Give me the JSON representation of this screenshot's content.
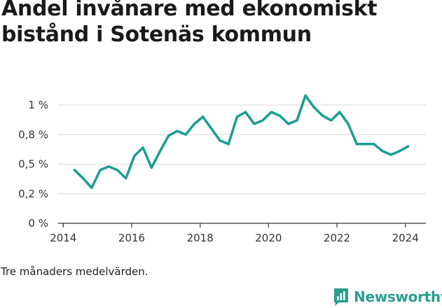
{
  "title": "Andel invånare med ekonomiskt bistånd i Sotenäs kommun",
  "note": "Tre månaders medelvärden.",
  "brand": {
    "name": "Newsworthy",
    "color": "#2a9d8f",
    "icon": "chart-speech-bubble-icon"
  },
  "chart_data": {
    "type": "line",
    "title": "Andel invånare med ekonomiskt bistånd i Sotenäs kommun",
    "xlabel": "",
    "ylabel": "",
    "x_ticks": [
      2014,
      2016,
      2018,
      2020,
      2022,
      2024
    ],
    "x_tick_labels": [
      "2014",
      "2016",
      "2018",
      "2020",
      "2022",
      "2024"
    ],
    "y_ticks": [
      0,
      0.25,
      0.5,
      0.75,
      1.0
    ],
    "y_tick_labels": [
      "0 %",
      "0,2 %",
      "0,5 %",
      "0,8 %",
      "1 %"
    ],
    "xlim": [
      2013.85,
      2024.6
    ],
    "ylim": [
      0,
      1.0
    ],
    "grid": true,
    "line_color": "#1a9e8f",
    "series": [
      {
        "x": [
          2014.33,
          2014.58,
          2014.83,
          2015.08,
          2015.33,
          2015.58,
          2015.83,
          2016.08,
          2016.33,
          2016.58,
          2016.83,
          2017.08,
          2017.33,
          2017.58,
          2017.83,
          2018.08,
          2018.33,
          2018.58,
          2018.83,
          2019.08,
          2019.33,
          2019.58,
          2019.83,
          2020.08,
          2020.33,
          2020.58,
          2020.83,
          2021.08,
          2021.33,
          2021.58,
          2021.83,
          2022.08,
          2022.33,
          2022.58,
          2022.83,
          2023.08,
          2023.33,
          2023.58,
          2023.83,
          2024.08
        ],
        "values": [
          0.45,
          0.38,
          0.3,
          0.45,
          0.48,
          0.45,
          0.38,
          0.57,
          0.64,
          0.47,
          0.61,
          0.74,
          0.78,
          0.75,
          0.84,
          0.9,
          0.8,
          0.7,
          0.67,
          0.9,
          0.94,
          0.84,
          0.87,
          0.94,
          0.91,
          0.84,
          0.87,
          1.08,
          0.98,
          0.91,
          0.87,
          0.94,
          0.84,
          0.67,
          0.67,
          0.67,
          0.61,
          0.58,
          0.61,
          0.65
        ]
      }
    ]
  }
}
